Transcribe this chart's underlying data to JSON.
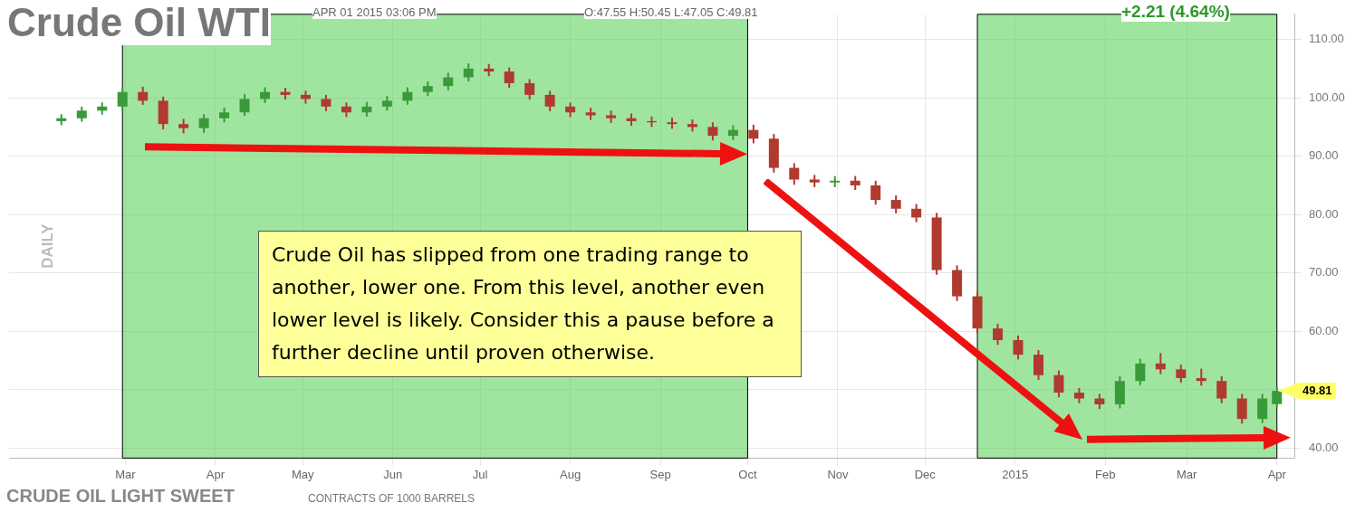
{
  "chart_data": {
    "type": "candlestick",
    "title": "Crude Oil WTI",
    "ylabel": "DAILY",
    "x": [
      "2014-02-07",
      "2014-02-14",
      "2014-02-21",
      "2014-02-28",
      "2014-03-07",
      "2014-03-14",
      "2014-03-21",
      "2014-03-28",
      "2014-04-04",
      "2014-04-11",
      "2014-04-18",
      "2014-04-25",
      "2014-05-02",
      "2014-05-09",
      "2014-05-16",
      "2014-05-23",
      "2014-05-30",
      "2014-06-06",
      "2014-06-13",
      "2014-06-20",
      "2014-06-27",
      "2014-07-04",
      "2014-07-11",
      "2014-07-18",
      "2014-07-25",
      "2014-08-01",
      "2014-08-08",
      "2014-08-15",
      "2014-08-22",
      "2014-08-29",
      "2014-09-05",
      "2014-09-12",
      "2014-09-19",
      "2014-09-26",
      "2014-10-03",
      "2014-10-10",
      "2014-10-17",
      "2014-10-24",
      "2014-10-31",
      "2014-11-07",
      "2014-11-14",
      "2014-11-21",
      "2014-11-28",
      "2014-12-05",
      "2014-12-12",
      "2014-12-19",
      "2014-12-26",
      "2015-01-02",
      "2015-01-09",
      "2015-01-16",
      "2015-01-23",
      "2015-01-30",
      "2015-02-06",
      "2015-02-13",
      "2015-02-20",
      "2015-02-27",
      "2015-03-06",
      "2015-03-13",
      "2015-03-20",
      "2015-03-27",
      "2015-04-01"
    ],
    "ohlc": [
      [
        96.0,
        97.2,
        95.3,
        96.5
      ],
      [
        96.5,
        98.5,
        95.9,
        97.8
      ],
      [
        97.8,
        99.2,
        97.1,
        98.5
      ],
      [
        98.5,
        101.8,
        97.8,
        101.0
      ],
      [
        101.0,
        101.9,
        98.8,
        99.5
      ],
      [
        99.5,
        100.2,
        94.6,
        95.5
      ],
      [
        95.5,
        96.4,
        93.9,
        94.8
      ],
      [
        94.8,
        97.2,
        94.0,
        96.5
      ],
      [
        96.5,
        98.3,
        95.8,
        97.5
      ],
      [
        97.5,
        100.6,
        96.9,
        99.8
      ],
      [
        99.8,
        101.8,
        99.1,
        101.0
      ],
      [
        101.0,
        101.7,
        99.7,
        100.5
      ],
      [
        100.5,
        101.2,
        99.0,
        99.8
      ],
      [
        99.8,
        100.5,
        97.7,
        98.5
      ],
      [
        98.5,
        99.2,
        96.7,
        97.5
      ],
      [
        97.5,
        99.3,
        96.8,
        98.5
      ],
      [
        98.5,
        100.3,
        97.8,
        99.5
      ],
      [
        99.5,
        101.8,
        98.8,
        101.0
      ],
      [
        101.0,
        102.8,
        100.3,
        102.0
      ],
      [
        102.0,
        104.3,
        101.3,
        103.5
      ],
      [
        103.5,
        105.9,
        102.8,
        105.0
      ],
      [
        105.0,
        105.8,
        103.7,
        104.5
      ],
      [
        104.5,
        105.2,
        101.7,
        102.5
      ],
      [
        102.5,
        103.2,
        99.7,
        100.5
      ],
      [
        100.5,
        101.2,
        97.7,
        98.5
      ],
      [
        98.5,
        99.2,
        96.7,
        97.5
      ],
      [
        97.5,
        98.3,
        96.2,
        97.0
      ],
      [
        97.0,
        97.8,
        95.7,
        96.5
      ],
      [
        96.5,
        97.3,
        95.2,
        96.0
      ],
      [
        96.0,
        96.8,
        95.0,
        95.8
      ],
      [
        95.8,
        96.6,
        94.7,
        95.5
      ],
      [
        95.5,
        96.3,
        94.2,
        95.0
      ],
      [
        95.0,
        95.8,
        92.7,
        93.5
      ],
      [
        93.5,
        95.3,
        92.8,
        94.5
      ],
      [
        94.5,
        95.4,
        92.2,
        93.0
      ],
      [
        93.0,
        93.8,
        87.2,
        88.0
      ],
      [
        88.0,
        88.8,
        85.1,
        86.0
      ],
      [
        86.0,
        86.8,
        84.7,
        85.5
      ],
      [
        85.5,
        86.6,
        84.7,
        85.8
      ],
      [
        85.8,
        86.6,
        84.2,
        85.0
      ],
      [
        85.0,
        85.8,
        81.7,
        82.5
      ],
      [
        82.5,
        83.3,
        80.2,
        81.0
      ],
      [
        81.0,
        81.8,
        78.7,
        79.5
      ],
      [
        79.5,
        80.3,
        69.7,
        70.5
      ],
      [
        70.5,
        71.3,
        65.2,
        66.0
      ],
      [
        66.0,
        66.8,
        59.7,
        60.5
      ],
      [
        60.5,
        61.3,
        57.7,
        58.5
      ],
      [
        58.5,
        59.3,
        55.2,
        56.0
      ],
      [
        56.0,
        56.8,
        51.7,
        52.5
      ],
      [
        52.5,
        53.3,
        48.7,
        49.5
      ],
      [
        49.5,
        50.3,
        47.7,
        48.5
      ],
      [
        48.5,
        49.3,
        46.7,
        47.5
      ],
      [
        47.5,
        52.3,
        46.8,
        51.5
      ],
      [
        51.5,
        55.3,
        50.8,
        54.5
      ],
      [
        54.5,
        56.3,
        52.7,
        53.5
      ],
      [
        53.5,
        54.3,
        51.2,
        52.0
      ],
      [
        52.0,
        53.6,
        50.7,
        51.5
      ],
      [
        51.5,
        52.3,
        47.7,
        48.5
      ],
      [
        48.5,
        49.3,
        44.2,
        45.0
      ],
      [
        45.0,
        49.3,
        44.3,
        48.5
      ],
      [
        47.55,
        50.45,
        47.05,
        49.81
      ]
    ],
    "colors": [
      "#3a9a3a",
      "#3a9a3a",
      "#3a9a3a",
      "#3a9a3a",
      "#b03a2e",
      "#b03a2e",
      "#b03a2e",
      "#3a9a3a",
      "#3a9a3a",
      "#3a9a3a",
      "#3a9a3a",
      "#b03a2e",
      "#b03a2e",
      "#b03a2e",
      "#b03a2e",
      "#3a9a3a",
      "#3a9a3a",
      "#3a9a3a",
      "#3a9a3a",
      "#3a9a3a",
      "#3a9a3a",
      "#b03a2e",
      "#b03a2e",
      "#b03a2e",
      "#b03a2e",
      "#b03a2e",
      "#b03a2e",
      "#b03a2e",
      "#b03a2e",
      "#b03a2e",
      "#b03a2e",
      "#b03a2e",
      "#b03a2e",
      "#3a9a3a",
      "#b03a2e",
      "#b03a2e",
      "#b03a2e",
      "#b03a2e",
      "#3a9a3a",
      "#b03a2e",
      "#b03a2e",
      "#b03a2e",
      "#b03a2e",
      "#b03a2e",
      "#b03a2e",
      "#b03a2e",
      "#b03a2e",
      "#b03a2e",
      "#b03a2e",
      "#b03a2e",
      "#b03a2e",
      "#b03a2e",
      "#3a9a3a",
      "#3a9a3a",
      "#b03a2e",
      "#b03a2e",
      "#b03a2e",
      "#b03a2e",
      "#b03a2e",
      "#3a9a3a",
      "#3a9a3a"
    ],
    "xlim": [
      "2014-01-20",
      "2015-04-07"
    ],
    "xticks": [
      {
        "value": "2014-03-01",
        "label": "Mar"
      },
      {
        "value": "2014-04-01",
        "label": "Apr"
      },
      {
        "value": "2014-05-01",
        "label": "May"
      },
      {
        "value": "2014-06-01",
        "label": "Jun"
      },
      {
        "value": "2014-07-01",
        "label": "Jul"
      },
      {
        "value": "2014-08-01",
        "label": "Aug"
      },
      {
        "value": "2014-09-01",
        "label": "Sep"
      },
      {
        "value": "2014-10-01",
        "label": "Oct"
      },
      {
        "value": "2014-11-01",
        "label": "Nov"
      },
      {
        "value": "2014-12-01",
        "label": "Dec"
      },
      {
        "value": "2015-01-01",
        "label": "2015"
      },
      {
        "value": "2015-02-01",
        "label": "Feb"
      },
      {
        "value": "2015-03-01",
        "label": "Mar"
      },
      {
        "value": "2015-04-01",
        "label": "Apr"
      }
    ],
    "ylim": [
      38.3,
      114.3
    ],
    "yticks": [
      {
        "value": 40,
        "label": "40.00"
      },
      {
        "value": 50,
        "label": null
      },
      {
        "value": 60,
        "label": "60.00"
      },
      {
        "value": 70,
        "label": "70.00"
      },
      {
        "value": 80,
        "label": "80.00"
      },
      {
        "value": 90,
        "label": "90.00"
      },
      {
        "value": 100,
        "label": "100.00"
      },
      {
        "value": 110,
        "label": "110.00"
      }
    ],
    "grid": true,
    "bands": [
      {
        "axis": "x",
        "from": "2014-02-28",
        "to": "2014-10-01",
        "color": "#5fd35f"
      },
      {
        "axis": "x",
        "from": "2014-12-19",
        "to": "2015-04-01",
        "color": "#5fd35f"
      }
    ],
    "annotations": [
      "APR 01 2015 03:06 PM",
      "O:47.55 H:50.45 L:47.05 C:49.81",
      "+2.21 (4.64%)",
      "Crude Oil has slipped from one trading range to another, lower one. From this level, another even lower level is likely. Consider this a pause before a further decline until proven otherwise.",
      "CRUDE OIL LIGHT SWEET",
      "CONTRACTS OF 1000 BARRELS",
      {
        "text": "49.81",
        "x": "2015-04-01",
        "y": 49.81
      }
    ]
  }
}
